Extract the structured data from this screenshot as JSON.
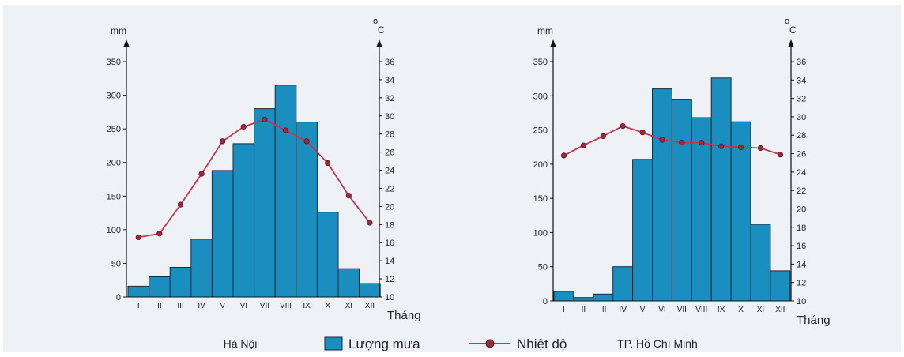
{
  "legend": {
    "rain_label": "Lượng mưa",
    "temp_label": "Nhiệt độ",
    "rain_color": "#1a8fbf",
    "temp_color": "#c8334a"
  },
  "chart_data": [
    {
      "type": "bar",
      "city": "Hà Nội",
      "categories": [
        "I",
        "II",
        "III",
        "IV",
        "V",
        "VI",
        "VII",
        "VIII",
        "IX",
        "X",
        "XI",
        "XII"
      ],
      "xlabel": "Tháng",
      "left_unit": "mm",
      "right_unit": "°C",
      "right_unit_symbol": "o",
      "right_unit_letter": "C",
      "left_axis": {
        "min": 0,
        "max": 350,
        "ticks": [
          0,
          50,
          100,
          150,
          200,
          250,
          300,
          350
        ]
      },
      "right_axis": {
        "min": 10,
        "max": 36,
        "ticks": [
          10,
          12,
          14,
          16,
          18,
          20,
          22,
          24,
          26,
          28,
          30,
          32,
          34,
          36
        ]
      },
      "series": [
        {
          "name": "Lượng mưa",
          "type": "bar",
          "axis": "left",
          "values": [
            16,
            30,
            44,
            86,
            188,
            228,
            280,
            315,
            260,
            126,
            42,
            20
          ]
        },
        {
          "name": "Nhiệt độ",
          "type": "line",
          "axis": "right",
          "values": [
            16.6,
            17,
            20.2,
            23.6,
            27.2,
            28.8,
            29.6,
            28.4,
            27.2,
            24.8,
            21.2,
            18.2
          ]
        }
      ]
    },
    {
      "type": "bar",
      "city": "TP. Hồ Chí Minh",
      "categories": [
        "I",
        "II",
        "III",
        "IV",
        "V",
        "VI",
        "VII",
        "VIII",
        "IX",
        "X",
        "XI",
        "XII"
      ],
      "xlabel": "Tháng",
      "left_unit": "mm",
      "right_unit": "°C",
      "right_unit_symbol": "o",
      "right_unit_letter": "C",
      "left_axis": {
        "min": 0,
        "max": 350,
        "ticks": [
          0,
          50,
          100,
          150,
          200,
          250,
          300,
          350
        ]
      },
      "right_axis": {
        "min": 10,
        "max": 36,
        "ticks": [
          10,
          12,
          14,
          16,
          18,
          20,
          22,
          24,
          26,
          28,
          30,
          32,
          34,
          36
        ]
      },
      "series": [
        {
          "name": "Lượng mưa",
          "type": "bar",
          "axis": "left",
          "values": [
            14,
            5,
            10,
            50,
            207,
            310,
            295,
            268,
            326,
            262,
            112,
            44
          ]
        },
        {
          "name": "Nhiệt độ",
          "type": "line",
          "axis": "right",
          "values": [
            25.8,
            26.9,
            27.9,
            29,
            28.3,
            27.5,
            27.2,
            27.2,
            26.8,
            26.7,
            26.6,
            25.9
          ]
        }
      ]
    }
  ]
}
